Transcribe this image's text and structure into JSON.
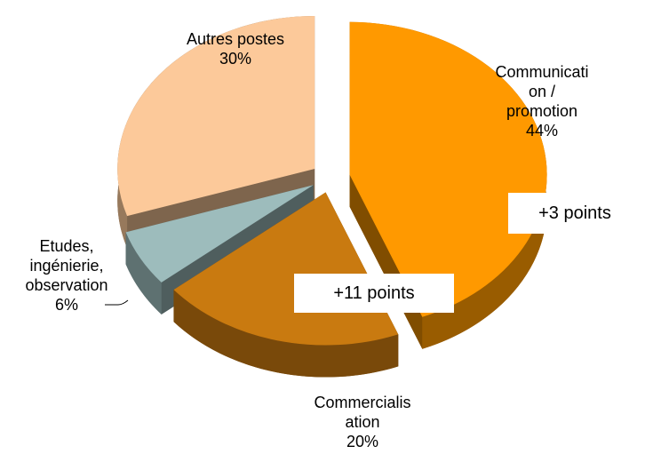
{
  "chart_data": {
    "type": "pie",
    "categories": [
      "Communicati\non /\npromotion",
      "Commercialis\nation",
      "Etudes,\ningénierie,\nobservation",
      "Autres postes"
    ],
    "values": [
      44,
      20,
      6,
      30
    ],
    "value_labels": [
      "44%",
      "20%",
      "6%",
      "30%"
    ],
    "colors": [
      "#ff9900",
      "#c97a10",
      "#9dbcbc",
      "#fcc99a"
    ],
    "annotations": [
      "+3 points",
      "+11 points"
    ]
  }
}
